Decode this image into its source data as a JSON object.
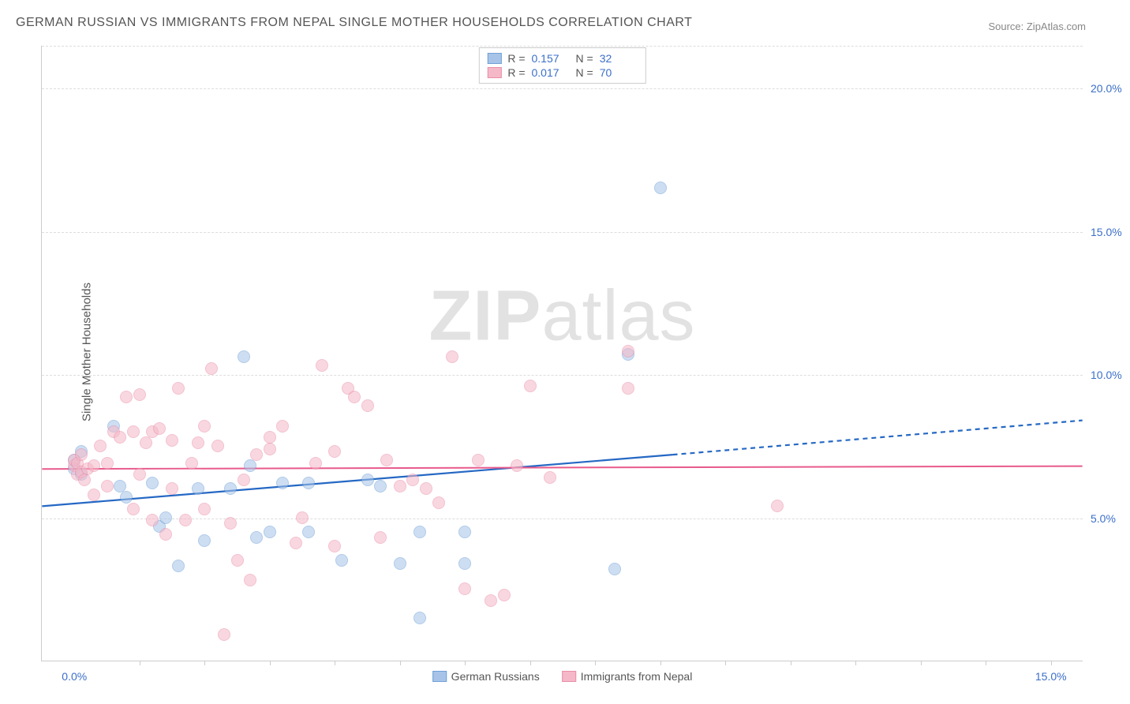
{
  "title": "GERMAN RUSSIAN VS IMMIGRANTS FROM NEPAL SINGLE MOTHER HOUSEHOLDS CORRELATION CHART",
  "source": "Source: ZipAtlas.com",
  "ylabel": "Single Mother Households",
  "watermark_bold": "ZIP",
  "watermark_rest": "atlas",
  "colors": {
    "blue_fill": "#a7c4e8",
    "blue_stroke": "#6fa0d8",
    "pink_fill": "#f5b8c8",
    "pink_stroke": "#e98fa8",
    "blue_line": "#2568c4",
    "pink_line": "#e85a8c",
    "grid": "#dddddd",
    "axis_text": "#3b6fc9",
    "gray_text": "#555555"
  },
  "chart": {
    "type": "scatter",
    "xlim": [
      -0.5,
      15.5
    ],
    "ylim": [
      0,
      21.5
    ],
    "yticks": [
      {
        "v": 5.0,
        "label": "5.0%"
      },
      {
        "v": 10.0,
        "label": "10.0%"
      },
      {
        "v": 15.0,
        "label": "15.0%"
      },
      {
        "v": 20.0,
        "label": "20.0%"
      }
    ],
    "xticks_minor": [
      1,
      2,
      3,
      4,
      5,
      6,
      7,
      8,
      9,
      10,
      11,
      12,
      13,
      14,
      15
    ],
    "xtick_left": {
      "v": 0.0,
      "label": "0.0%"
    },
    "xtick_right": {
      "v": 15.0,
      "label": "15.0%"
    },
    "marker_radius": 8,
    "marker_opacity": 0.55,
    "series": [
      {
        "name": "German Russians",
        "color_fill": "#a7c4e8",
        "color_stroke": "#6fa0d8",
        "R": "0.157",
        "N": "32",
        "trend": {
          "x1": -0.5,
          "y1": 5.4,
          "x2": 9.2,
          "y2": 7.2,
          "ext_x2": 15.5,
          "ext_y2": 8.4,
          "stroke": "#2568c4",
          "width": 2.2
        },
        "points": [
          [
            0.0,
            7.0
          ],
          [
            0.0,
            6.7
          ],
          [
            0.1,
            6.5
          ],
          [
            0.1,
            7.3
          ],
          [
            0.6,
            8.2
          ],
          [
            0.7,
            6.1
          ],
          [
            0.8,
            5.7
          ],
          [
            1.2,
            6.2
          ],
          [
            1.3,
            4.7
          ],
          [
            1.4,
            5.0
          ],
          [
            1.6,
            3.3
          ],
          [
            1.9,
            6.0
          ],
          [
            2.0,
            4.2
          ],
          [
            2.4,
            6.0
          ],
          [
            2.6,
            10.6
          ],
          [
            2.7,
            6.8
          ],
          [
            2.8,
            4.3
          ],
          [
            3.0,
            4.5
          ],
          [
            3.2,
            6.2
          ],
          [
            3.6,
            4.5
          ],
          [
            3.6,
            6.2
          ],
          [
            4.1,
            3.5
          ],
          [
            4.5,
            6.3
          ],
          [
            4.7,
            6.1
          ],
          [
            5.0,
            3.4
          ],
          [
            5.3,
            4.5
          ],
          [
            5.3,
            1.5
          ],
          [
            6.0,
            4.5
          ],
          [
            6.0,
            3.4
          ],
          [
            8.5,
            10.7
          ],
          [
            8.3,
            3.2
          ],
          [
            9.0,
            16.5
          ]
        ]
      },
      {
        "name": "Immigrants from Nepal",
        "color_fill": "#f5b8c8",
        "color_stroke": "#e98fa8",
        "R": "0.017",
        "N": "70",
        "trend": {
          "x1": -0.5,
          "y1": 6.7,
          "x2": 15.5,
          "y2": 6.8,
          "stroke": "#e85a8c",
          "width": 2.0
        },
        "points": [
          [
            0.0,
            6.8
          ],
          [
            0.0,
            7.0
          ],
          [
            0.05,
            6.5
          ],
          [
            0.05,
            6.9
          ],
          [
            0.1,
            6.6
          ],
          [
            0.1,
            7.2
          ],
          [
            0.15,
            6.3
          ],
          [
            0.2,
            6.7
          ],
          [
            0.3,
            6.8
          ],
          [
            0.3,
            5.8
          ],
          [
            0.4,
            7.5
          ],
          [
            0.5,
            6.1
          ],
          [
            0.5,
            6.9
          ],
          [
            0.6,
            8.0
          ],
          [
            0.7,
            7.8
          ],
          [
            0.8,
            9.2
          ],
          [
            0.9,
            5.3
          ],
          [
            0.9,
            8.0
          ],
          [
            1.0,
            9.3
          ],
          [
            1.0,
            6.5
          ],
          [
            1.1,
            7.6
          ],
          [
            1.2,
            8.0
          ],
          [
            1.2,
            4.9
          ],
          [
            1.3,
            8.1
          ],
          [
            1.4,
            4.4
          ],
          [
            1.5,
            6.0
          ],
          [
            1.5,
            7.7
          ],
          [
            1.6,
            9.5
          ],
          [
            1.7,
            4.9
          ],
          [
            1.8,
            6.9
          ],
          [
            1.9,
            7.6
          ],
          [
            2.0,
            8.2
          ],
          [
            2.0,
            5.3
          ],
          [
            2.1,
            10.2
          ],
          [
            2.2,
            7.5
          ],
          [
            2.3,
            0.9
          ],
          [
            2.4,
            4.8
          ],
          [
            2.5,
            3.5
          ],
          [
            2.6,
            6.3
          ],
          [
            2.7,
            2.8
          ],
          [
            2.8,
            7.2
          ],
          [
            3.0,
            7.4
          ],
          [
            3.0,
            7.8
          ],
          [
            3.2,
            8.2
          ],
          [
            3.4,
            4.1
          ],
          [
            3.5,
            5.0
          ],
          [
            3.7,
            6.9
          ],
          [
            3.8,
            10.3
          ],
          [
            4.0,
            4.0
          ],
          [
            4.0,
            7.3
          ],
          [
            4.2,
            9.5
          ],
          [
            4.3,
            9.2
          ],
          [
            4.5,
            8.9
          ],
          [
            4.7,
            4.3
          ],
          [
            4.8,
            7.0
          ],
          [
            5.0,
            6.1
          ],
          [
            5.2,
            6.3
          ],
          [
            5.4,
            6.0
          ],
          [
            5.6,
            5.5
          ],
          [
            5.8,
            10.6
          ],
          [
            6.0,
            2.5
          ],
          [
            6.2,
            7.0
          ],
          [
            6.4,
            2.1
          ],
          [
            6.6,
            2.3
          ],
          [
            6.8,
            6.8
          ],
          [
            7.3,
            6.4
          ],
          [
            7.0,
            9.6
          ],
          [
            8.5,
            10.8
          ],
          [
            8.5,
            9.5
          ],
          [
            10.8,
            5.4
          ]
        ]
      }
    ]
  },
  "legend": {
    "series1": "German Russians",
    "series2": "Immigrants from Nepal"
  },
  "stats_labels": {
    "R": "R  =",
    "N": "N  ="
  }
}
